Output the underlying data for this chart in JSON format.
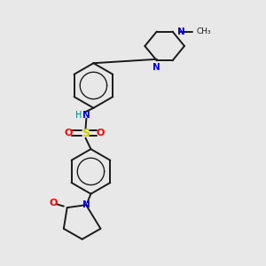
{
  "bg_color": "#e8e8e8",
  "bond_color": "#1a1a1a",
  "N_color": "#0000ee",
  "O_color": "#ff0000",
  "S_color": "#cccc00",
  "H_color": "#008080",
  "line_width": 1.4,
  "figsize": [
    3.0,
    3.0
  ],
  "dpi": 100,
  "xlim": [
    0,
    10
  ],
  "ylim": [
    0,
    10
  ]
}
